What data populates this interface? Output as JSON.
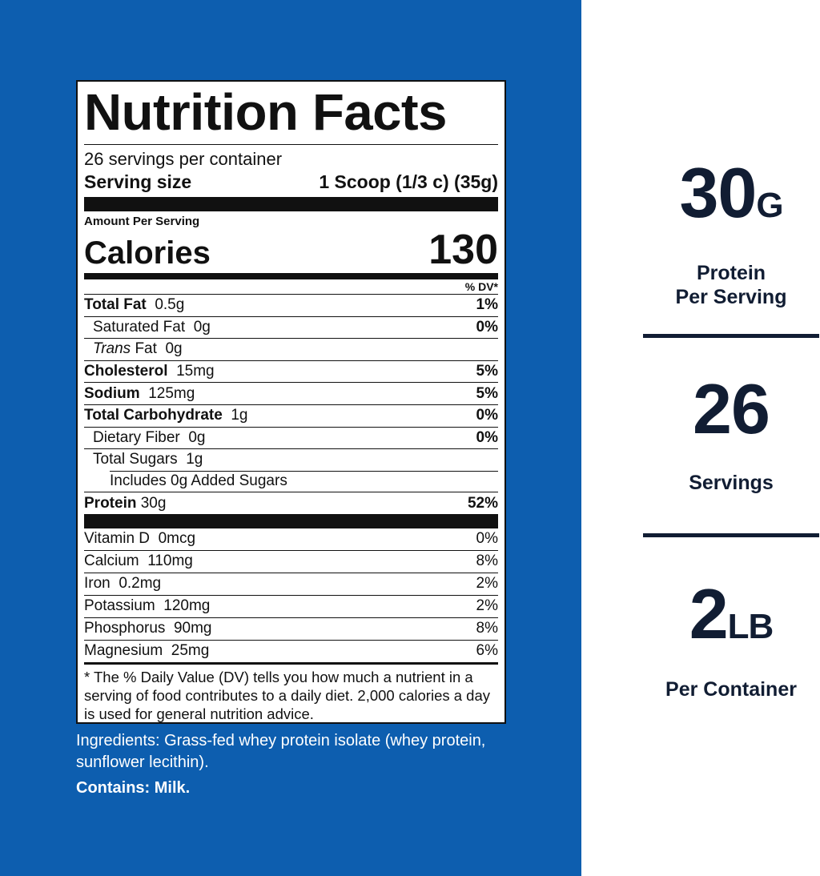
{
  "label": {
    "title": "Nutrition Facts",
    "servings_per_container": "26 servings per container",
    "serving_size_label": "Serving size",
    "serving_size_value": "1 Scoop (1/3 c) (35g)",
    "amount_per_serving": "Amount Per Serving",
    "calories_label": "Calories",
    "calories_value": "130",
    "dv_header": "% DV*",
    "nutrients": [
      {
        "name": "Total Fat",
        "amount": "0.5g",
        "dv": "1%"
      },
      {
        "name": "Saturated Fat",
        "amount": "0g",
        "dv": "0%"
      },
      {
        "name": "Trans",
        "name_suffix": "Fat",
        "amount": "0g",
        "dv": ""
      },
      {
        "name": "Cholesterol",
        "amount": "15mg",
        "dv": "5%"
      },
      {
        "name": "Sodium",
        "amount": "125mg",
        "dv": "5%"
      },
      {
        "name": "Total Carbohydrate",
        "amount": "1g",
        "dv": "0%"
      },
      {
        "name": "Dietary Fiber",
        "amount": "0g",
        "dv": "0%"
      },
      {
        "name": "Total Sugars",
        "amount": "1g",
        "dv": ""
      },
      {
        "name": "Includes 0g Added Sugars",
        "amount": "",
        "dv": ""
      },
      {
        "name": "Protein",
        "amount": "30g",
        "dv": "52%"
      }
    ],
    "vitamins": [
      {
        "name": "Vitamin D",
        "amount": "0mcg",
        "dv": "0%"
      },
      {
        "name": "Calcium",
        "amount": "110mg",
        "dv": "8%"
      },
      {
        "name": "Iron",
        "amount": "0.2mg",
        "dv": "2%"
      },
      {
        "name": "Potassium",
        "amount": "120mg",
        "dv": "2%"
      },
      {
        "name": "Phosphorus",
        "amount": "90mg",
        "dv": "8%"
      },
      {
        "name": "Magnesium",
        "amount": "25mg",
        "dv": "6%"
      }
    ],
    "footnote": "* The % Daily Value (DV) tells you how much a nutrient in a serving of food contributes to a daily diet. 2,000 calories a day is used for general nutrition advice."
  },
  "ingredients": "Ingredients: Grass-fed whey protein isolate (whey protein, sunflower lecithin).",
  "contains": "Contains: Milk.",
  "stats": [
    {
      "value": "30",
      "unit": "G",
      "caption": [
        "Protein",
        "Per Serving"
      ]
    },
    {
      "value": "26",
      "unit": "",
      "caption": [
        "Servings"
      ]
    },
    {
      "value": "2",
      "unit": "LB",
      "caption": [
        "Per Container"
      ]
    }
  ],
  "colors": {
    "panel": "#0d5eaf",
    "stat_text": "#111d33"
  }
}
